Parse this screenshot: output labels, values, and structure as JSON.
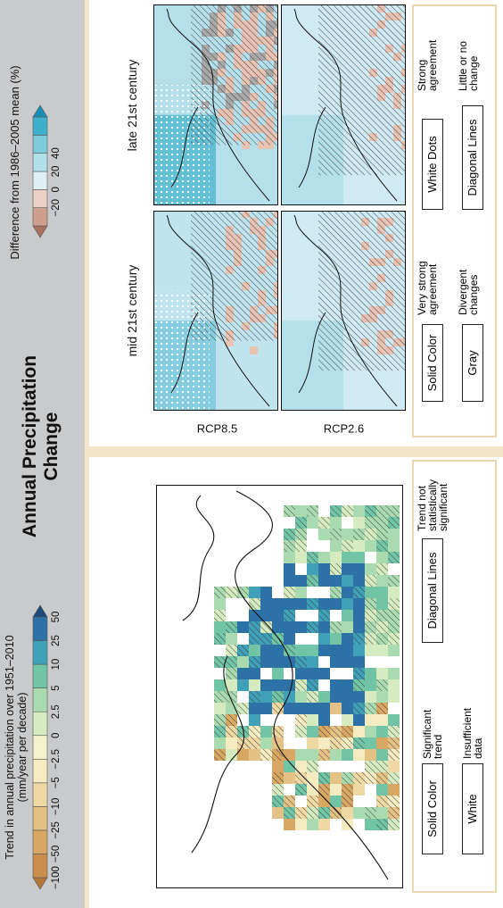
{
  "header": {
    "title": "Annual Precipitation Change"
  },
  "observed": {
    "colorbar": {
      "title": "Trend in annual precipitation over 1951–2010",
      "unit": "(mm/year per decade)",
      "ticks": [
        "−100",
        "−50",
        "−25",
        "−10",
        "−5",
        "−2.5",
        "0",
        "2.5",
        "5",
        "10",
        "25",
        "50"
      ]
    },
    "legend": [
      {
        "swatch": "Solid Color",
        "text": "Significant trend"
      },
      {
        "swatch": "Diagonal Lines",
        "text": "Trend not statistically significant"
      },
      {
        "swatch": "White",
        "text": "Insufficient data"
      }
    ]
  },
  "projected": {
    "colorbar": {
      "title": "Difference from 1986–2005 mean (%)",
      "ticks": [
        "−20",
        "0",
        "20",
        "40"
      ]
    },
    "columns": [
      "mid 21st century",
      "late 21st century"
    ],
    "rows": [
      "RCP8.5",
      "RCP2.6"
    ],
    "legend": [
      {
        "swatch": "Solid Color",
        "text": "Very strong agreement"
      },
      {
        "swatch": "White Dots",
        "text": "Strong agreement"
      },
      {
        "swatch": "Gray",
        "text": "Divergent changes"
      },
      {
        "swatch": "Diagonal Lines",
        "text": "Little or no change"
      }
    ]
  }
}
